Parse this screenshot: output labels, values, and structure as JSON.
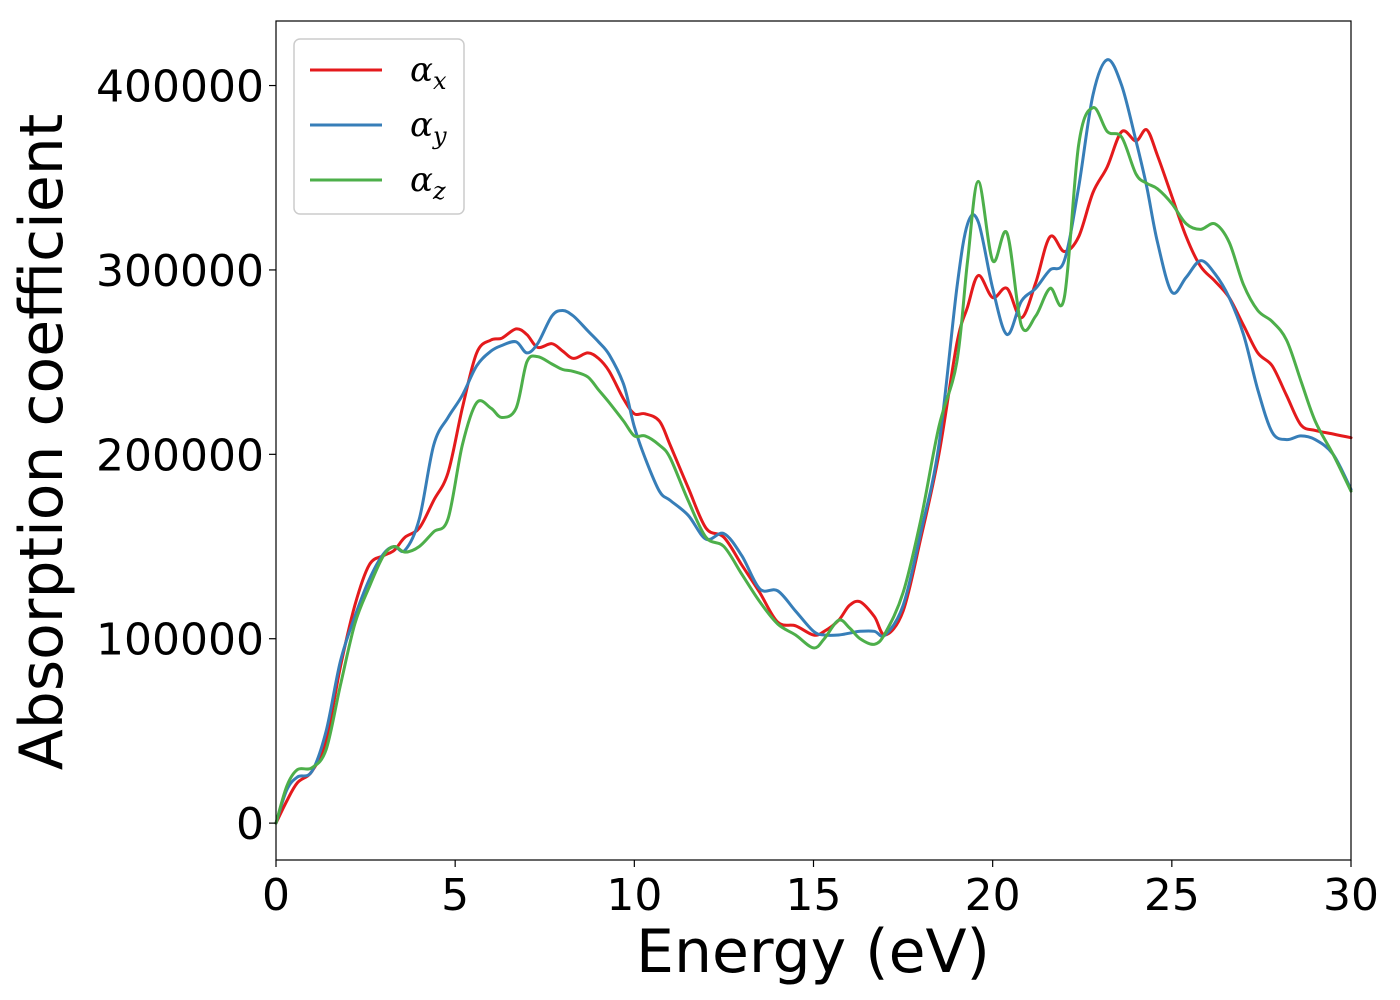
{
  "chart_data": {
    "type": "line",
    "title": "",
    "xlabel": "Energy (eV)",
    "ylabel": "Absorption coefficient",
    "xlim": [
      0,
      30
    ],
    "ylim": [
      -20000,
      435000
    ],
    "xticks": [
      0,
      5,
      10,
      15,
      20,
      25,
      30
    ],
    "yticks": [
      0,
      100000,
      200000,
      300000,
      400000
    ],
    "grid": false,
    "legend_position": "top-left",
    "series": [
      {
        "name": "αx",
        "symbol": "α",
        "subscript": "x",
        "color": "#e41a1c",
        "x": [
          0,
          0.3,
          0.6,
          1.0,
          1.4,
          1.8,
          2.2,
          2.6,
          3.0,
          3.3,
          3.6,
          4.0,
          4.4,
          4.8,
          5.2,
          5.6,
          6.0,
          6.3,
          6.7,
          7.0,
          7.3,
          7.7,
          8.0,
          8.3,
          8.7,
          9.0,
          9.3,
          9.7,
          10.0,
          10.3,
          10.7,
          11.0,
          11.5,
          12.0,
          12.5,
          13.0,
          13.5,
          14.0,
          14.5,
          15.0,
          15.3,
          15.7,
          16.0,
          16.3,
          16.7,
          17.0,
          17.5,
          18.0,
          18.5,
          19.0,
          19.3,
          19.6,
          20.0,
          20.4,
          20.8,
          21.2,
          21.6,
          22.0,
          22.4,
          22.8,
          23.2,
          23.6,
          24.0,
          24.3,
          24.6,
          25.0,
          25.4,
          25.8,
          26.2,
          26.6,
          27.0,
          27.4,
          27.8,
          28.2,
          28.6,
          29.0,
          29.5,
          30.0
        ],
        "y": [
          0,
          12000,
          22000,
          28000,
          45000,
          85000,
          118000,
          140000,
          145000,
          148000,
          155000,
          160000,
          175000,
          190000,
          225000,
          255000,
          262000,
          263000,
          268000,
          265000,
          258000,
          260000,
          256000,
          252000,
          255000,
          252000,
          245000,
          230000,
          222000,
          222000,
          218000,
          205000,
          182000,
          160000,
          155000,
          140000,
          125000,
          109000,
          107000,
          102000,
          104000,
          110000,
          118000,
          120000,
          112000,
          102000,
          115000,
          155000,
          200000,
          260000,
          280000,
          297000,
          285000,
          290000,
          274000,
          293000,
          318000,
          310000,
          318000,
          342000,
          356000,
          375000,
          370000,
          376000,
          362000,
          340000,
          318000,
          302000,
          294000,
          285000,
          270000,
          255000,
          248000,
          232000,
          216000,
          213000,
          211000,
          209000
        ]
      },
      {
        "name": "αy",
        "symbol": "α",
        "subscript": "y",
        "color": "#377eb8",
        "x": [
          0,
          0.3,
          0.6,
          1.0,
          1.4,
          1.8,
          2.2,
          2.6,
          3.0,
          3.3,
          3.6,
          4.0,
          4.4,
          4.8,
          5.2,
          5.6,
          6.0,
          6.3,
          6.7,
          7.0,
          7.3,
          7.7,
          8.0,
          8.3,
          8.7,
          9.0,
          9.3,
          9.7,
          10.0,
          10.3,
          10.7,
          11.0,
          11.5,
          12.0,
          12.5,
          13.0,
          13.5,
          14.0,
          14.5,
          15.0,
          15.3,
          15.7,
          16.0,
          16.3,
          16.7,
          17.0,
          17.5,
          18.0,
          18.5,
          19.0,
          19.3,
          19.6,
          20.0,
          20.4,
          20.8,
          21.2,
          21.6,
          22.0,
          22.4,
          22.8,
          23.2,
          23.6,
          24.0,
          24.3,
          24.6,
          25.0,
          25.4,
          25.8,
          26.2,
          26.6,
          27.0,
          27.4,
          27.8,
          28.2,
          28.6,
          29.0,
          29.5,
          30.0
        ],
        "y": [
          0,
          18000,
          25000,
          28000,
          50000,
          88000,
          112000,
          132000,
          146000,
          150000,
          148000,
          165000,
          205000,
          220000,
          232000,
          248000,
          256000,
          259000,
          261000,
          255000,
          260000,
          275000,
          278000,
          275000,
          267000,
          261000,
          254000,
          238000,
          215000,
          198000,
          180000,
          175000,
          167000,
          154000,
          157000,
          145000,
          127000,
          126000,
          115000,
          104000,
          102000,
          102000,
          103000,
          104000,
          104000,
          102000,
          118000,
          158000,
          205000,
          290000,
          325000,
          326000,
          290000,
          265000,
          283000,
          290000,
          300000,
          305000,
          345000,
          395000,
          414000,
          400000,
          370000,
          345000,
          315000,
          288000,
          296000,
          305000,
          298000,
          285000,
          265000,
          235000,
          212000,
          208000,
          210000,
          208000,
          200000,
          181000
        ]
      },
      {
        "name": "αz",
        "symbol": "α",
        "subscript": "z",
        "color": "#4daf4a",
        "x": [
          0,
          0.3,
          0.6,
          1.0,
          1.4,
          1.8,
          2.2,
          2.6,
          3.0,
          3.3,
          3.6,
          4.0,
          4.4,
          4.8,
          5.2,
          5.6,
          6.0,
          6.3,
          6.7,
          7.0,
          7.3,
          7.7,
          8.0,
          8.3,
          8.7,
          9.0,
          9.3,
          9.7,
          10.0,
          10.3,
          10.7,
          11.0,
          11.5,
          12.0,
          12.5,
          13.0,
          13.5,
          14.0,
          14.5,
          15.0,
          15.3,
          15.7,
          16.0,
          16.3,
          16.7,
          17.0,
          17.5,
          18.0,
          18.5,
          19.0,
          19.3,
          19.6,
          20.0,
          20.4,
          20.8,
          21.2,
          21.6,
          22.0,
          22.4,
          22.8,
          23.2,
          23.6,
          24.0,
          24.3,
          24.6,
          25.0,
          25.4,
          25.8,
          26.2,
          26.6,
          27.0,
          27.4,
          27.8,
          28.2,
          28.6,
          29.0,
          29.5,
          30.0
        ],
        "y": [
          0,
          20000,
          29000,
          30000,
          40000,
          75000,
          108000,
          128000,
          145000,
          150000,
          147000,
          150000,
          158000,
          165000,
          205000,
          228000,
          225000,
          220000,
          225000,
          250000,
          253000,
          249000,
          246000,
          245000,
          242000,
          235000,
          228000,
          218000,
          210000,
          210000,
          205000,
          198000,
          175000,
          155000,
          150000,
          135000,
          120000,
          108000,
          102000,
          95000,
          100000,
          110000,
          106000,
          100000,
          97000,
          103000,
          125000,
          165000,
          215000,
          250000,
          305000,
          348000,
          305000,
          320000,
          270000,
          275000,
          290000,
          285000,
          368000,
          388000,
          375000,
          372000,
          352000,
          347000,
          344000,
          336000,
          325000,
          322000,
          325000,
          315000,
          292000,
          278000,
          272000,
          262000,
          240000,
          218000,
          200000,
          180000
        ]
      }
    ]
  }
}
